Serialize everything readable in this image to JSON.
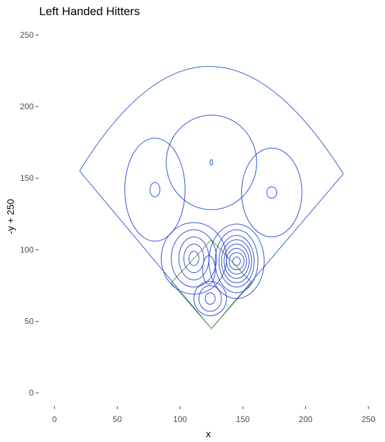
{
  "chart_data": {
    "type": "contour",
    "title": "Left Handed Hitters",
    "xlabel": "x",
    "ylabel": "-y + 250",
    "xlim": [
      -10,
      255
    ],
    "ylim": [
      -15,
      260
    ],
    "x_ticks": [
      0,
      50,
      100,
      150,
      200,
      250
    ],
    "y_ticks": [
      0,
      50,
      100,
      150,
      200,
      250
    ],
    "grid": false,
    "colors": {
      "field": "#3a5fcd",
      "infield": "#5a9a2a",
      "contour": "#2e4fd6"
    },
    "field_outline": {
      "home_plate": [
        125,
        45
      ],
      "left_foul_corner": [
        20,
        155
      ],
      "right_foul_corner": [
        230,
        153
      ],
      "center_peak": [
        124,
        228
      ]
    },
    "infield_diamond": [
      [
        125,
        45
      ],
      [
        93,
        77
      ],
      [
        125,
        107
      ],
      [
        157,
        77
      ]
    ],
    "density_regions": [
      {
        "cx": 80,
        "cy": 142,
        "levels": [
          [
            4,
            5
          ],
          [
            24,
            36
          ]
        ]
      },
      {
        "cx": 125,
        "cy": 161,
        "levels": [
          [
            1,
            2
          ],
          [
            36,
            33
          ]
        ]
      },
      {
        "cx": 173,
        "cy": 140,
        "levels": [
          [
            4,
            4
          ],
          [
            24,
            31
          ]
        ]
      },
      {
        "cx": 111,
        "cy": 94,
        "levels": [
          [
            4,
            5
          ],
          [
            8,
            10
          ],
          [
            12,
            15
          ],
          [
            18,
            20
          ],
          [
            26,
            25
          ]
        ]
      },
      {
        "cx": 145,
        "cy": 92,
        "levels": [
          [
            3,
            3
          ],
          [
            6,
            6
          ],
          [
            8,
            9
          ],
          [
            10,
            12
          ],
          [
            12,
            15
          ],
          [
            14,
            18
          ],
          [
            17,
            22
          ],
          [
            22,
            26
          ]
        ]
      },
      {
        "cx": 124,
        "cy": 66,
        "levels": [
          [
            4,
            4
          ],
          [
            9,
            9
          ],
          [
            13,
            12
          ]
        ]
      },
      {
        "cx": 123,
        "cy": 86,
        "levels": [
          [
            5,
            10
          ]
        ]
      }
    ]
  }
}
